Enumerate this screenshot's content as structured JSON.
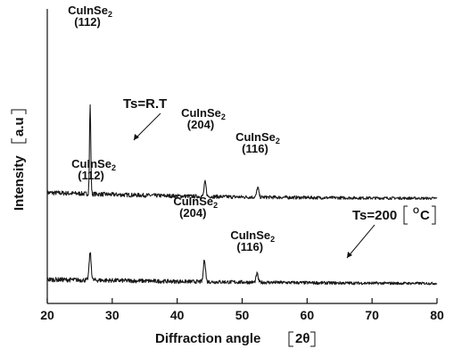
{
  "chart_data": {
    "type": "line",
    "xlabel": "Diffraction angle",
    "xlabel_unit": "2θ",
    "ylabel": "Intensity",
    "ylabel_unit": "a.u",
    "xlim": [
      20,
      80
    ],
    "x_ticks": [
      20,
      30,
      40,
      50,
      60,
      70,
      80
    ],
    "y_ticks_labeled": false,
    "grid": false,
    "series": [
      {
        "name": "Ts=R.T",
        "baseline": [
          [
            20,
            140
          ],
          [
            30,
            122
          ],
          [
            40,
            107
          ],
          [
            50,
            98
          ],
          [
            60,
            92
          ],
          [
            70,
            88
          ],
          [
            80,
            85
          ]
        ],
        "peaks": [
          {
            "x": 26.6,
            "height": 860
          },
          {
            "x": 44.3,
            "height": 140
          },
          {
            "x": 52.4,
            "height": 95
          }
        ]
      },
      {
        "name": "Ts=200 [°C]",
        "baseline": [
          [
            20,
            42
          ],
          [
            30,
            33
          ],
          [
            40,
            23
          ],
          [
            50,
            16
          ],
          [
            60,
            10
          ],
          [
            70,
            6
          ],
          [
            80,
            4
          ]
        ],
        "peaks": [
          {
            "x": 26.6,
            "height": 265
          },
          {
            "x": 44.2,
            "height": 220
          },
          {
            "x": 52.3,
            "height": 85
          }
        ]
      }
    ],
    "annotations": [
      {
        "series": 0,
        "text": "CuInSe",
        "sub": "2",
        "hkl": "(112)",
        "x": 26.6
      },
      {
        "series": 0,
        "text": "CuInSe",
        "sub": "2",
        "hkl": "(204)",
        "x": 44.3
      },
      {
        "series": 0,
        "text": "CuInSe",
        "sub": "2",
        "hkl": "(116)",
        "x": 52.4
      },
      {
        "series": 1,
        "text": "CuInSe",
        "sub": "2",
        "hkl": "(112)",
        "x": 26.6
      },
      {
        "series": 1,
        "text": "CuInSe",
        "sub": "2",
        "hkl": "(204)",
        "x": 44.2
      },
      {
        "series": 1,
        "text": "CuInSe",
        "sub": "2",
        "hkl": "(116)",
        "x": 52.3
      }
    ],
    "condition_labels": [
      {
        "series": 0,
        "text": "Ts=R.T"
      },
      {
        "series": 1,
        "text": "Ts=200",
        "unit": "O",
        "unit_suffix": "C"
      }
    ]
  }
}
